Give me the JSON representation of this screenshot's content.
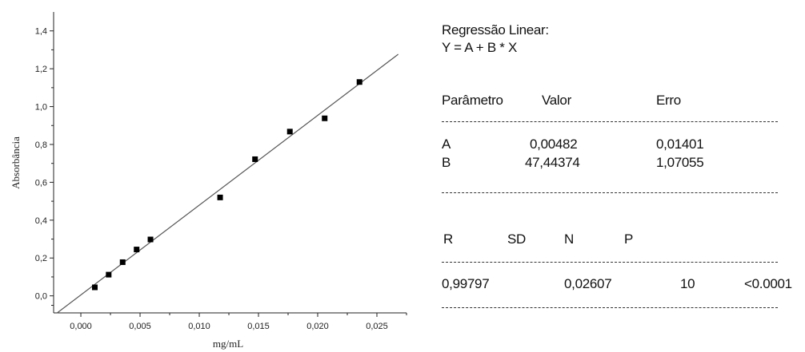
{
  "chart_data": {
    "type": "scatter",
    "xlabel": "mg/mL",
    "ylabel": "Absorbância",
    "xlim": [
      -0.0023,
      0.0275
    ],
    "ylim": [
      -0.09,
      1.5
    ],
    "x_ticks": [
      "0,000",
      "0,005",
      "0,010",
      "0,015",
      "0,020",
      "0,025"
    ],
    "y_ticks": [
      "0,0",
      "0,2",
      "0,4",
      "0,6",
      "0,8",
      "1,0",
      "1,2",
      "1,4"
    ],
    "points": [
      {
        "x": 0.00118,
        "y": 0.045
      },
      {
        "x": 0.00235,
        "y": 0.112
      },
      {
        "x": 0.00353,
        "y": 0.178
      },
      {
        "x": 0.00471,
        "y": 0.245
      },
      {
        "x": 0.00588,
        "y": 0.298
      },
      {
        "x": 0.01176,
        "y": 0.52
      },
      {
        "x": 0.01471,
        "y": 0.722
      },
      {
        "x": 0.01765,
        "y": 0.868
      },
      {
        "x": 0.02059,
        "y": 0.938
      },
      {
        "x": 0.02353,
        "y": 1.13
      }
    ],
    "fit": {
      "intercept": 0.00482,
      "slope": 47.44374
    },
    "grid": false
  },
  "stats": {
    "title": "Regressão Linear:",
    "equation": "Y = A + B * X",
    "param_headers": [
      "Parâmetro",
      "Valor",
      "Erro"
    ],
    "params": [
      {
        "name": "A",
        "value": "0,00482",
        "error": "0,01401"
      },
      {
        "name": "B",
        "value": "47,44374",
        "error": "1,07055"
      }
    ],
    "summary_headers": [
      "R",
      "SD",
      "N",
      "P"
    ],
    "summary_values": [
      "0,99797",
      "0,02607",
      "10",
      "<0.0001"
    ]
  }
}
